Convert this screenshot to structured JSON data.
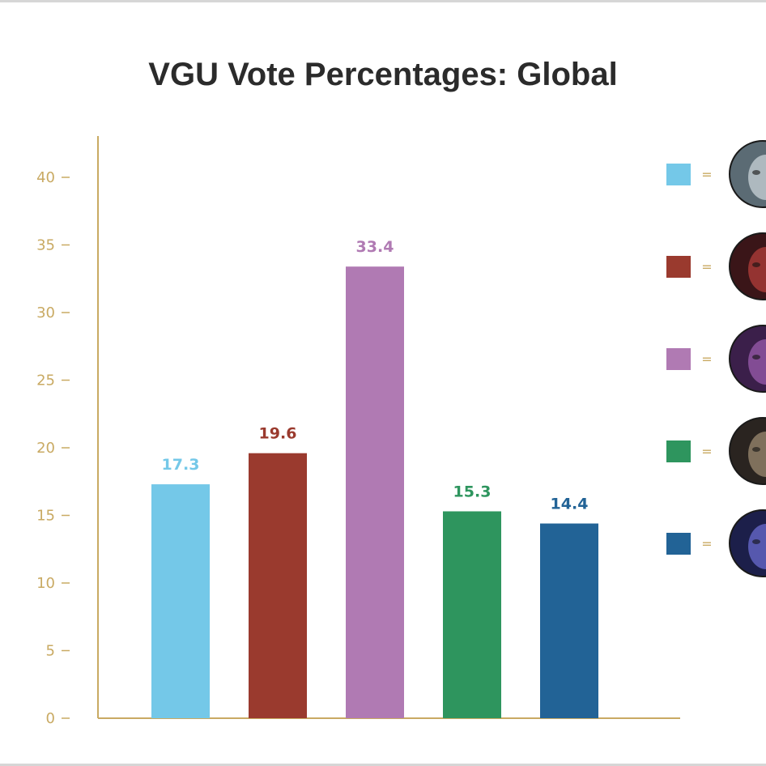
{
  "chart_data": {
    "type": "bar",
    "title": "VGU Vote Percentages: Global",
    "xlabel": "",
    "ylabel": "",
    "ylim": [
      0,
      42
    ],
    "yticks": [
      0,
      5,
      10,
      15,
      20,
      25,
      30,
      35,
      40
    ],
    "grid": false,
    "legend_position": "right",
    "series": [
      {
        "color": "#74c8e8",
        "value": 17.3,
        "label": "17.3",
        "icon": "champion-portrait-armored-knight"
      },
      {
        "color": "#9a3a2e",
        "value": 19.6,
        "label": "19.6",
        "icon": "champion-portrait-red-haired-woman"
      },
      {
        "color": "#b07ab3",
        "value": 33.4,
        "label": "33.4",
        "icon": "champion-portrait-purple-beast"
      },
      {
        "color": "#2e955e",
        "value": 15.3,
        "label": "15.3",
        "icon": "champion-portrait-dark-warrior"
      },
      {
        "color": "#226396",
        "value": 14.4,
        "label": "14.4",
        "icon": "champion-portrait-void-creature"
      }
    ],
    "axis_color": "#c9aa63",
    "legend_separator": "="
  }
}
